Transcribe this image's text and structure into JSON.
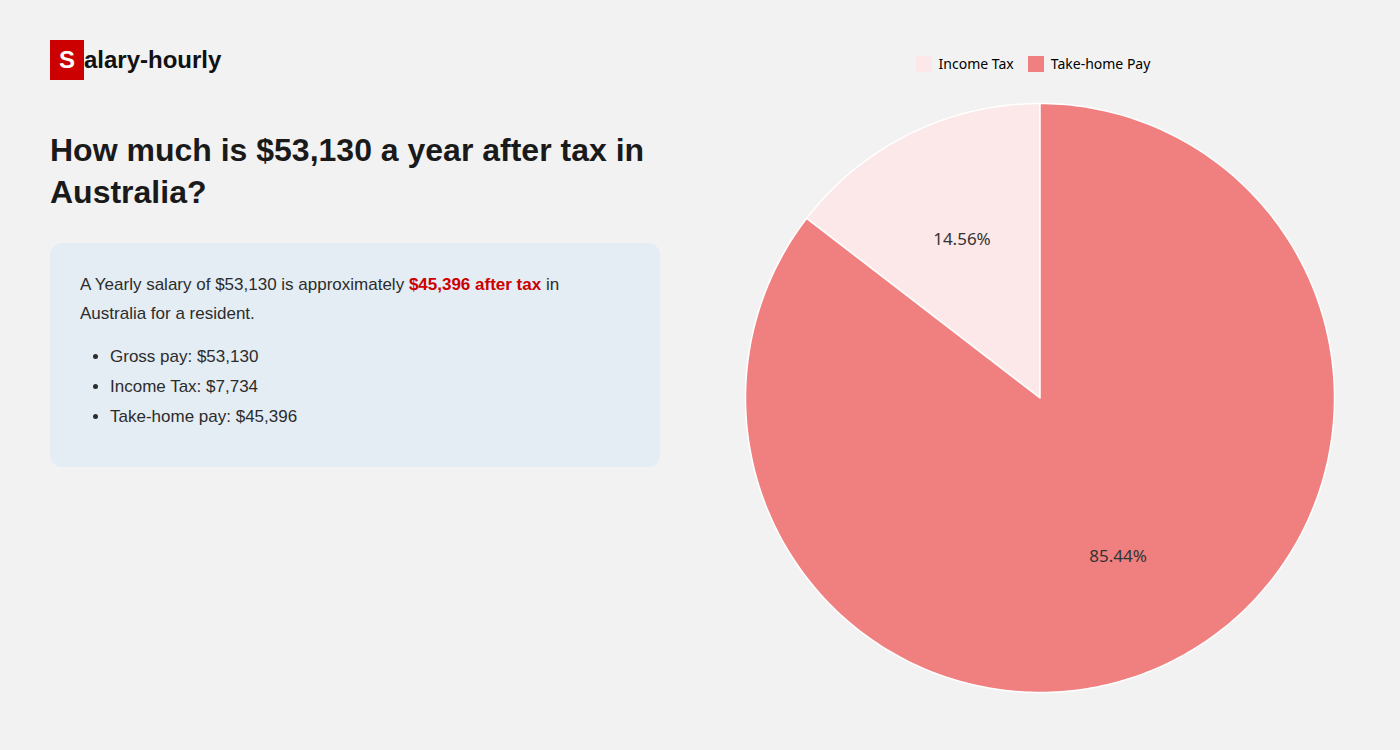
{
  "chart_data": {
    "type": "pie",
    "title": "How much is $53,130 a year after tax in Australia?",
    "annotations": [
      {
        "text": "S",
        "color": "#cc0000"
      },
      {
        "text": "alary-hourly"
      },
      {
        "text": "A Yearly salary of $53,130 is approximately "
      },
      {
        "text": "$45,396 after tax",
        "color": "#cc0000"
      },
      {
        "text": " in"
      },
      {
        "text": "Australia for a resident."
      },
      {
        "text": "Gross pay: $53,130"
      },
      {
        "text": "Income Tax: $7,734"
      },
      {
        "text": "Take-home pay: $45,396"
      }
    ],
    "categories": [
      "Income Tax",
      "Take-home Pay"
    ],
    "values": [
      14.56,
      85.44
    ],
    "value_labels": [
      "14.56%",
      "85.44%"
    ],
    "data_labels": true,
    "colors": [
      "#fce8e8",
      "#f08080"
    ],
    "legend": "top"
  }
}
